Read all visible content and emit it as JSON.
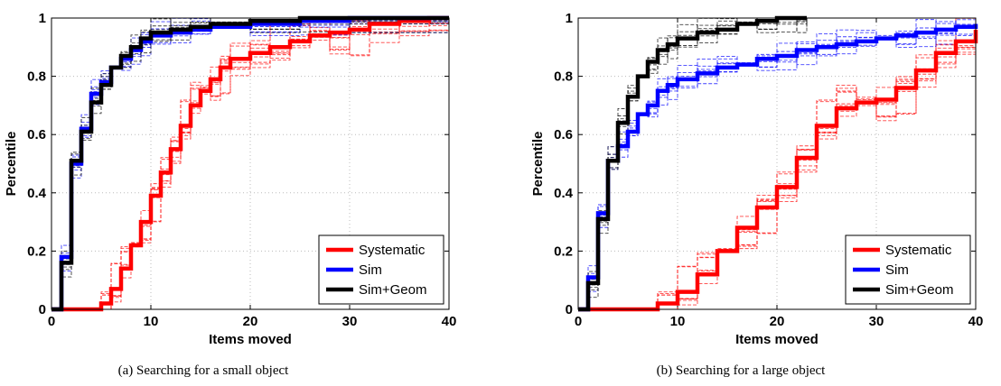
{
  "chart_data": [
    {
      "type": "line",
      "subtitle": "(a) Searching for a small object",
      "xlabel": "Items moved",
      "ylabel": "Percentile",
      "xlim": [
        0,
        40
      ],
      "ylim": [
        0,
        1
      ],
      "xticks": [
        "0",
        "10",
        "20",
        "30",
        "40"
      ],
      "yticks": [
        "0",
        "0.2",
        "0.4",
        "0.6",
        "0.8",
        "1"
      ],
      "grid": true,
      "legend_position": "bottom-right",
      "series": [
        {
          "name": "Systematic",
          "color": "#ff0000",
          "x": [
            0,
            2,
            4,
            5,
            6,
            7,
            8,
            9,
            10,
            11,
            12,
            13,
            14,
            15,
            16,
            17,
            18,
            20,
            22,
            24,
            26,
            28,
            30,
            32,
            35,
            38,
            40
          ],
          "y": [
            0,
            0,
            0,
            0.02,
            0.07,
            0.14,
            0.22,
            0.3,
            0.39,
            0.47,
            0.55,
            0.63,
            0.7,
            0.75,
            0.79,
            0.83,
            0.86,
            0.88,
            0.9,
            0.92,
            0.94,
            0.95,
            0.96,
            0.98,
            0.99,
            1.0,
            1.0
          ]
        },
        {
          "name": "Sim",
          "color": "#0000ff",
          "x": [
            0,
            1,
            2,
            3,
            4,
            5,
            6,
            7,
            8,
            9,
            10,
            12,
            14,
            16,
            20,
            25,
            30,
            40
          ],
          "y": [
            0,
            0.18,
            0.5,
            0.62,
            0.74,
            0.78,
            0.83,
            0.86,
            0.89,
            0.92,
            0.94,
            0.95,
            0.96,
            0.97,
            0.98,
            0.99,
            1.0,
            1.0
          ]
        },
        {
          "name": "Sim+Geom",
          "color": "#000000",
          "x": [
            0,
            1,
            2,
            3,
            4,
            5,
            6,
            7,
            8,
            9,
            10,
            12,
            14,
            16,
            20,
            25,
            30,
            40
          ],
          "y": [
            0,
            0.16,
            0.51,
            0.61,
            0.71,
            0.77,
            0.83,
            0.87,
            0.9,
            0.93,
            0.95,
            0.96,
            0.97,
            0.98,
            0.99,
            1.0,
            1.0,
            1.0
          ]
        }
      ]
    },
    {
      "type": "line",
      "subtitle": "(b) Searching for a large object",
      "xlabel": "Items moved",
      "ylabel": "Percentile",
      "xlim": [
        0,
        40
      ],
      "ylim": [
        0,
        1
      ],
      "xticks": [
        "0",
        "10",
        "20",
        "30",
        "40"
      ],
      "yticks": [
        "0",
        "0.2",
        "0.4",
        "0.6",
        "0.8",
        "1"
      ],
      "grid": true,
      "legend_position": "bottom-right",
      "series": [
        {
          "name": "Systematic",
          "color": "#ff0000",
          "x": [
            0,
            4,
            6,
            8,
            10,
            12,
            14,
            16,
            18,
            20,
            22,
            24,
            26,
            28,
            30,
            32,
            34,
            36,
            38,
            40
          ],
          "y": [
            0,
            0,
            0.0,
            0.02,
            0.06,
            0.12,
            0.2,
            0.28,
            0.35,
            0.42,
            0.52,
            0.63,
            0.69,
            0.71,
            0.72,
            0.76,
            0.82,
            0.88,
            0.92,
            0.96
          ]
        },
        {
          "name": "Sim",
          "color": "#0000ff",
          "x": [
            0,
            1,
            2,
            3,
            4,
            5,
            6,
            7,
            8,
            9,
            10,
            12,
            14,
            16,
            18,
            20,
            22,
            24,
            26,
            28,
            30,
            32,
            34,
            36,
            38,
            40
          ],
          "y": [
            0,
            0.11,
            0.33,
            0.51,
            0.56,
            0.61,
            0.67,
            0.7,
            0.75,
            0.77,
            0.79,
            0.81,
            0.83,
            0.84,
            0.86,
            0.87,
            0.89,
            0.9,
            0.91,
            0.92,
            0.93,
            0.94,
            0.95,
            0.96,
            0.97,
            0.98
          ]
        },
        {
          "name": "Sim+Geom",
          "color": "#000000",
          "x": [
            0,
            1,
            2,
            3,
            4,
            5,
            6,
            7,
            8,
            9,
            10,
            12,
            14,
            16,
            18,
            20,
            22,
            23
          ],
          "y": [
            0,
            0.09,
            0.31,
            0.51,
            0.64,
            0.73,
            0.8,
            0.85,
            0.89,
            0.91,
            0.93,
            0.95,
            0.96,
            0.98,
            0.99,
            1.0,
            1.0,
            1.0
          ]
        }
      ]
    }
  ]
}
